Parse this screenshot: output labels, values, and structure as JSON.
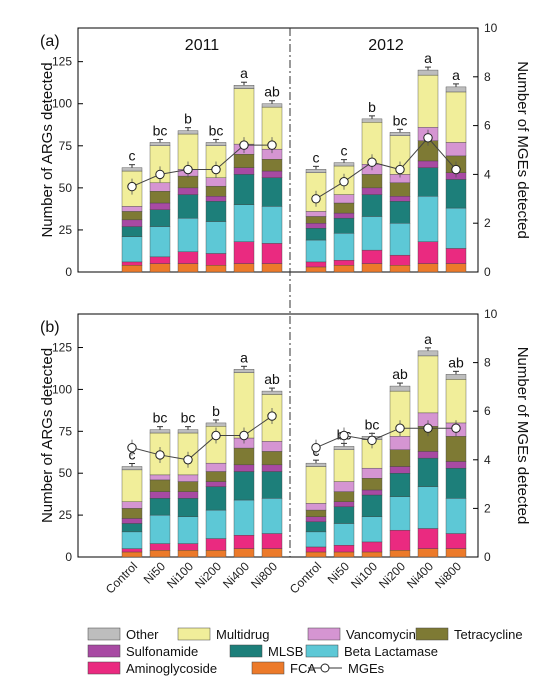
{
  "chart_data": {
    "type": "bar",
    "stacked": true,
    "categories": [
      "Control",
      "Ni50",
      "Ni100",
      "Ni200",
      "Ni400",
      "Ni800"
    ],
    "stack_order": [
      "FCA",
      "Aminoglycoside",
      "Beta Lactamase",
      "MLSB",
      "Sulfonamide",
      "Tetracycline",
      "Vancomycin",
      "Multidrug",
      "Other"
    ],
    "colors": {
      "Other": "#bdbdbd",
      "Multidrug": "#f1ee9a",
      "Vancomycin": "#d595d2",
      "Tetracycline": "#7e7a34",
      "Sulfonamide": "#a84aa3",
      "MLSB": "#1d7f7a",
      "Beta Lactamase": "#5dc8d6",
      "Aminoglycoside": "#ea2a80",
      "FCA": "#ec7a2a",
      "MGEs": "#444444"
    },
    "left_axis": {
      "label": "Number of ARGs detected",
      "range": [
        0,
        145
      ],
      "ticks": [
        "0",
        "25",
        "50",
        "75",
        "100",
        "125"
      ]
    },
    "right_axis": {
      "label": "Number of MGEs detected",
      "range": [
        0,
        10
      ],
      "ticks": [
        "0",
        "2",
        "4",
        "6",
        "8",
        "10"
      ]
    },
    "legend": {
      "placement": "bottom",
      "entries": [
        "Other",
        "Multidrug",
        "Vancomycin",
        "Tetracycline",
        "Sulfonamide",
        "MLSB",
        "Beta Lactamase",
        "Aminoglycoside",
        "FCA",
        "MGEs"
      ]
    },
    "panels": [
      {
        "letter": "(a)",
        "groups": [
          {
            "year": "2011",
            "significance": [
              "c",
              "bc",
              "b",
              "bc",
              "a",
              "ab"
            ],
            "series": {
              "FCA": [
                4,
                5,
                5,
                4,
                5,
                5
              ],
              "Aminoglycoside": [
                2,
                4,
                7,
                7,
                13,
                12
              ],
              "Beta Lactamase": [
                15,
                18,
                20,
                19,
                22,
                22
              ],
              "MLSB": [
                6,
                10,
                14,
                12,
                18,
                17
              ],
              "Sulfonamide": [
                4,
                4,
                4,
                3,
                4,
                4
              ],
              "Tetracycline": [
                5,
                7,
                7,
                6,
                8,
                7
              ],
              "Vancomycin": [
                3,
                5,
                4,
                5,
                6,
                6
              ],
              "Multidrug": [
                21,
                22,
                21,
                19,
                33,
                25
              ],
              "Other": [
                2,
                2,
                2,
                2,
                2,
                2
              ]
            },
            "mges": [
              3.5,
              4.0,
              4.2,
              4.2,
              5.2,
              5.2
            ]
          },
          {
            "year": "2012",
            "significance": [
              "c",
              "c",
              "b",
              "bc",
              "a",
              "a"
            ],
            "series": {
              "FCA": [
                3,
                4,
                5,
                4,
                5,
                5
              ],
              "Aminoglycoside": [
                3,
                3,
                8,
                6,
                13,
                9
              ],
              "Beta Lactamase": [
                13,
                16,
                20,
                19,
                27,
                24
              ],
              "MLSB": [
                7,
                9,
                13,
                13,
                17,
                17
              ],
              "Sulfonamide": [
                3,
                3,
                4,
                3,
                4,
                4
              ],
              "Tetracycline": [
                4,
                6,
                8,
                8,
                12,
                10
              ],
              "Vancomycin": [
                3,
                5,
                6,
                5,
                8,
                8
              ],
              "Multidrug": [
                23,
                17,
                25,
                23,
                31,
                30
              ],
              "Other": [
                2,
                2,
                2,
                2,
                3,
                3
              ]
            },
            "mges": [
              3.0,
              3.7,
              4.5,
              4.2,
              5.5,
              4.2
            ]
          }
        ]
      },
      {
        "letter": "(b)",
        "groups": [
          {
            "year": "",
            "significance": [
              "c",
              "bc",
              "bc",
              "b",
              "a",
              "ab"
            ],
            "series": {
              "FCA": [
                3,
                4,
                4,
                4,
                5,
                5
              ],
              "Aminoglycoside": [
                2,
                4,
                4,
                7,
                8,
                9
              ],
              "Beta Lactamase": [
                10,
                17,
                16,
                17,
                21,
                21
              ],
              "MLSB": [
                5,
                10,
                11,
                14,
                17,
                16
              ],
              "Sulfonamide": [
                3,
                4,
                4,
                3,
                4,
                4
              ],
              "Tetracycline": [
                6,
                7,
                6,
                6,
                10,
                8
              ],
              "Vancomycin": [
                4,
                3,
                4,
                5,
                6,
                6
              ],
              "Multidrug": [
                19,
                25,
                25,
                22,
                39,
                28
              ],
              "Other": [
                2,
                2,
                2,
                2,
                2,
                2
              ]
            },
            "mges": [
              4.5,
              4.2,
              4.0,
              5.0,
              5.0,
              5.8
            ]
          },
          {
            "year": "",
            "significance": [
              "c",
              "bc",
              "bc",
              "ab",
              "a",
              "ab"
            ],
            "series": {
              "FCA": [
                3,
                3,
                3,
                4,
                5,
                5
              ],
              "Aminoglycoside": [
                3,
                4,
                6,
                12,
                12,
                9
              ],
              "Beta Lactamase": [
                9,
                13,
                15,
                20,
                25,
                21
              ],
              "MLSB": [
                6,
                10,
                13,
                14,
                17,
                18
              ],
              "Sulfonamide": [
                3,
                3,
                3,
                4,
                4,
                4
              ],
              "Tetracycline": [
                4,
                6,
                7,
                10,
                15,
                15
              ],
              "Vancomycin": [
                4,
                6,
                6,
                8,
                8,
                8
              ],
              "Multidrug": [
                22,
                19,
                17,
                27,
                34,
                26
              ],
              "Other": [
                2,
                2,
                2,
                3,
                3,
                3
              ]
            },
            "mges": [
              4.5,
              5.0,
              4.8,
              5.3,
              5.3,
              5.3
            ]
          }
        ]
      }
    ]
  }
}
